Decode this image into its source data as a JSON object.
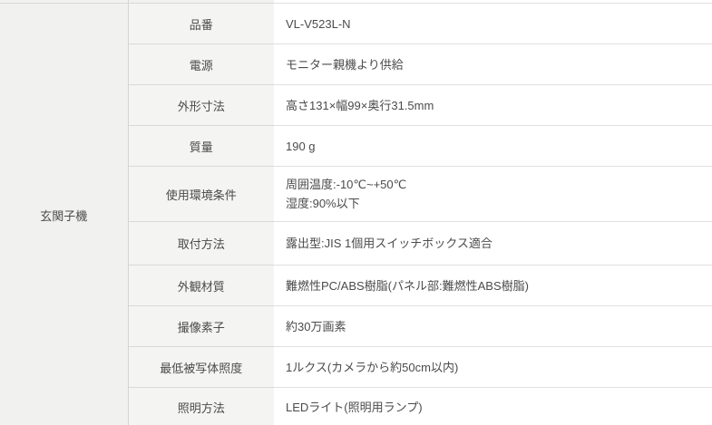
{
  "section": {
    "label": "玄関子機"
  },
  "table": {
    "rows": [
      {
        "label": "品番",
        "value": "VL-V523L-N"
      },
      {
        "label": "電源",
        "value": "モニター親機より供給"
      },
      {
        "label": "外形寸法",
        "value": "高さ131×幅99×奥行31.5mm"
      },
      {
        "label": "質量",
        "value": "190 g"
      },
      {
        "label": "使用環境条件",
        "value": "周囲温度:-10℃~+50℃\n湿度:90%以下"
      },
      {
        "label": "取付方法",
        "value": "露出型:JIS 1個用スイッチボックス適合"
      },
      {
        "label": "外観材質",
        "value": "難燃性PC/ABS樹脂(パネル部:難燃性ABS樹脂)"
      },
      {
        "label": "撮像素子",
        "value": "約30万画素"
      },
      {
        "label": "最低被写体照度",
        "value": "1ルクス(カメラから約50cm以内)"
      },
      {
        "label": "照明方法",
        "value": "LEDライト(照明用ランプ)"
      }
    ]
  },
  "colors": {
    "section_bg": "#f1f1ef",
    "label_bg": "#f4f4f2",
    "row_border": "#d9d9d7",
    "text": "#4b4b4b"
  }
}
